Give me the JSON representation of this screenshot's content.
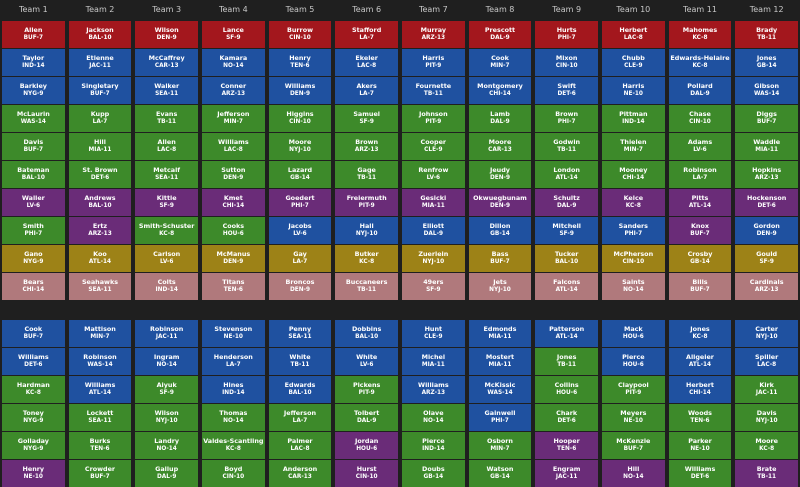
{
  "colors": {
    "QB": "#a3171d",
    "RB": "#1f51a0",
    "WR": "#3d8a2a",
    "TE": "#6a2c78",
    "K": "#9d8217",
    "DEF": "#b0797c",
    "background": "#1f1f1f",
    "header_text": "#c8c8c8"
  },
  "teams": [
    "Team 1",
    "Team 2",
    "Team 3",
    "Team 4",
    "Team 5",
    "Team 6",
    "Team 7",
    "Team 8",
    "Team 9",
    "Team 10",
    "Team 11",
    "Team 12"
  ],
  "rounds": [
    [
      {
        "name": "Allen",
        "team": "BUF-7",
        "pos": "QB"
      },
      {
        "name": "Jackson",
        "team": "BAL-10",
        "pos": "QB"
      },
      {
        "name": "Wilson",
        "team": "DEN-9",
        "pos": "QB"
      },
      {
        "name": "Lance",
        "team": "SF-9",
        "pos": "QB"
      },
      {
        "name": "Burrow",
        "team": "CIN-10",
        "pos": "QB"
      },
      {
        "name": "Stafford",
        "team": "LA-7",
        "pos": "QB"
      },
      {
        "name": "Murray",
        "team": "ARZ-13",
        "pos": "QB"
      },
      {
        "name": "Prescott",
        "team": "DAL-9",
        "pos": "QB"
      },
      {
        "name": "Hurts",
        "team": "PHI-7",
        "pos": "QB"
      },
      {
        "name": "Herbert",
        "team": "LAC-8",
        "pos": "QB"
      },
      {
        "name": "Mahomes",
        "team": "KC-8",
        "pos": "QB"
      },
      {
        "name": "Brady",
        "team": "TB-11",
        "pos": "QB"
      }
    ],
    [
      {
        "name": "Taylor",
        "team": "IND-14",
        "pos": "RB"
      },
      {
        "name": "Etienne",
        "team": "JAC-11",
        "pos": "RB"
      },
      {
        "name": "McCaffrey",
        "team": "CAR-13",
        "pos": "RB"
      },
      {
        "name": "Kamara",
        "team": "NO-14",
        "pos": "RB"
      },
      {
        "name": "Henry",
        "team": "TEN-6",
        "pos": "RB"
      },
      {
        "name": "Ekeler",
        "team": "LAC-8",
        "pos": "RB"
      },
      {
        "name": "Harris",
        "team": "PIT-9",
        "pos": "RB"
      },
      {
        "name": "Cook",
        "team": "MIN-7",
        "pos": "RB"
      },
      {
        "name": "Mixon",
        "team": "CIN-10",
        "pos": "RB"
      },
      {
        "name": "Chubb",
        "team": "CLE-9",
        "pos": "RB"
      },
      {
        "name": "Edwards-Helaire",
        "team": "KC-8",
        "pos": "RB"
      },
      {
        "name": "Jones",
        "team": "GB-14",
        "pos": "RB"
      }
    ],
    [
      {
        "name": "Barkley",
        "team": "NYG-9",
        "pos": "RB"
      },
      {
        "name": "Singletary",
        "team": "BUF-7",
        "pos": "RB"
      },
      {
        "name": "Walker",
        "team": "SEA-11",
        "pos": "RB"
      },
      {
        "name": "Conner",
        "team": "ARZ-13",
        "pos": "RB"
      },
      {
        "name": "Williams",
        "team": "DEN-9",
        "pos": "RB"
      },
      {
        "name": "Akers",
        "team": "LA-7",
        "pos": "RB"
      },
      {
        "name": "Fournette",
        "team": "TB-11",
        "pos": "RB"
      },
      {
        "name": "Montgomery",
        "team": "CHI-14",
        "pos": "RB"
      },
      {
        "name": "Swift",
        "team": "DET-6",
        "pos": "RB"
      },
      {
        "name": "Harris",
        "team": "NE-10",
        "pos": "RB"
      },
      {
        "name": "Pollard",
        "team": "DAL-9",
        "pos": "RB"
      },
      {
        "name": "Gibson",
        "team": "WAS-14",
        "pos": "RB"
      }
    ],
    [
      {
        "name": "McLaurin",
        "team": "WAS-14",
        "pos": "WR"
      },
      {
        "name": "Kupp",
        "team": "LA-7",
        "pos": "WR"
      },
      {
        "name": "Evans",
        "team": "TB-11",
        "pos": "WR"
      },
      {
        "name": "Jefferson",
        "team": "MIN-7",
        "pos": "WR"
      },
      {
        "name": "Higgins",
        "team": "CIN-10",
        "pos": "WR"
      },
      {
        "name": "Samuel",
        "team": "SF-9",
        "pos": "WR"
      },
      {
        "name": "Johnson",
        "team": "PIT-9",
        "pos": "WR"
      },
      {
        "name": "Lamb",
        "team": "DAL-9",
        "pos": "WR"
      },
      {
        "name": "Brown",
        "team": "PHI-7",
        "pos": "WR"
      },
      {
        "name": "Pittman",
        "team": "IND-14",
        "pos": "WR"
      },
      {
        "name": "Chase",
        "team": "CIN-10",
        "pos": "WR"
      },
      {
        "name": "Diggs",
        "team": "BUF-7",
        "pos": "WR"
      }
    ],
    [
      {
        "name": "Davis",
        "team": "BUF-7",
        "pos": "WR"
      },
      {
        "name": "Hill",
        "team": "MIA-11",
        "pos": "WR"
      },
      {
        "name": "Allen",
        "team": "LAC-8",
        "pos": "WR"
      },
      {
        "name": "Williams",
        "team": "LAC-8",
        "pos": "WR"
      },
      {
        "name": "Moore",
        "team": "NYJ-10",
        "pos": "WR"
      },
      {
        "name": "Brown",
        "team": "ARZ-13",
        "pos": "WR"
      },
      {
        "name": "Cooper",
        "team": "CLE-9",
        "pos": "WR"
      },
      {
        "name": "Moore",
        "team": "CAR-13",
        "pos": "WR"
      },
      {
        "name": "Godwin",
        "team": "TB-11",
        "pos": "WR"
      },
      {
        "name": "Thielen",
        "team": "MIN-7",
        "pos": "WR"
      },
      {
        "name": "Adams",
        "team": "LV-6",
        "pos": "WR"
      },
      {
        "name": "Waddle",
        "team": "MIA-11",
        "pos": "WR"
      }
    ],
    [
      {
        "name": "Bateman",
        "team": "BAL-10",
        "pos": "WR"
      },
      {
        "name": "St. Brown",
        "team": "DET-6",
        "pos": "WR"
      },
      {
        "name": "Metcalf",
        "team": "SEA-11",
        "pos": "WR"
      },
      {
        "name": "Sutton",
        "team": "DEN-9",
        "pos": "WR"
      },
      {
        "name": "Lazard",
        "team": "GB-14",
        "pos": "WR"
      },
      {
        "name": "Gage",
        "team": "TB-11",
        "pos": "WR"
      },
      {
        "name": "Renfrow",
        "team": "LV-6",
        "pos": "WR"
      },
      {
        "name": "Jeudy",
        "team": "DEN-9",
        "pos": "WR"
      },
      {
        "name": "London",
        "team": "ATL-14",
        "pos": "WR"
      },
      {
        "name": "Mooney",
        "team": "CHI-14",
        "pos": "WR"
      },
      {
        "name": "Robinson",
        "team": "LA-7",
        "pos": "WR"
      },
      {
        "name": "Hopkins",
        "team": "ARZ-13",
        "pos": "WR"
      }
    ],
    [
      {
        "name": "Waller",
        "team": "LV-6",
        "pos": "TE"
      },
      {
        "name": "Andrews",
        "team": "BAL-10",
        "pos": "TE"
      },
      {
        "name": "Kittle",
        "team": "SF-9",
        "pos": "TE"
      },
      {
        "name": "Kmet",
        "team": "CHI-14",
        "pos": "TE"
      },
      {
        "name": "Goedert",
        "team": "PHI-7",
        "pos": "TE"
      },
      {
        "name": "Freiermuth",
        "team": "PIT-9",
        "pos": "TE"
      },
      {
        "name": "Gesicki",
        "team": "MIA-11",
        "pos": "TE"
      },
      {
        "name": "Okwuegbunam",
        "team": "DEN-9",
        "pos": "TE"
      },
      {
        "name": "Schultz",
        "team": "DAL-9",
        "pos": "TE"
      },
      {
        "name": "Kelce",
        "team": "KC-8",
        "pos": "TE"
      },
      {
        "name": "Pitts",
        "team": "ATL-14",
        "pos": "TE"
      },
      {
        "name": "Hockenson",
        "team": "DET-6",
        "pos": "TE"
      }
    ],
    [
      {
        "name": "Smith",
        "team": "PHI-7",
        "pos": "WR"
      },
      {
        "name": "Ertz",
        "team": "ARZ-13",
        "pos": "TE"
      },
      {
        "name": "Smith-Schuster",
        "team": "KC-8",
        "pos": "WR"
      },
      {
        "name": "Cooks",
        "team": "HOU-6",
        "pos": "WR"
      },
      {
        "name": "Jacobs",
        "team": "LV-6",
        "pos": "RB"
      },
      {
        "name": "Hall",
        "team": "NYJ-10",
        "pos": "RB"
      },
      {
        "name": "Elliott",
        "team": "DAL-9",
        "pos": "RB"
      },
      {
        "name": "Dillon",
        "team": "GB-14",
        "pos": "RB"
      },
      {
        "name": "Mitchell",
        "team": "SF-9",
        "pos": "RB"
      },
      {
        "name": "Sanders",
        "team": "PHI-7",
        "pos": "RB"
      },
      {
        "name": "Knox",
        "team": "BUF-7",
        "pos": "TE"
      },
      {
        "name": "Gordon",
        "team": "DEN-9",
        "pos": "RB"
      }
    ],
    [
      {
        "name": "Gano",
        "team": "NYG-9",
        "pos": "K"
      },
      {
        "name": "Koo",
        "team": "ATL-14",
        "pos": "K"
      },
      {
        "name": "Carlson",
        "team": "LV-6",
        "pos": "K"
      },
      {
        "name": "McManus",
        "team": "DEN-9",
        "pos": "K"
      },
      {
        "name": "Gay",
        "team": "LA-7",
        "pos": "K"
      },
      {
        "name": "Butker",
        "team": "KC-8",
        "pos": "K"
      },
      {
        "name": "Zuerlein",
        "team": "NYJ-10",
        "pos": "K"
      },
      {
        "name": "Bass",
        "team": "BUF-7",
        "pos": "K"
      },
      {
        "name": "Tucker",
        "team": "BAL-10",
        "pos": "K"
      },
      {
        "name": "McPherson",
        "team": "CIN-10",
        "pos": "K"
      },
      {
        "name": "Crosby",
        "team": "GB-14",
        "pos": "K"
      },
      {
        "name": "Gould",
        "team": "SF-9",
        "pos": "K"
      }
    ],
    [
      {
        "name": "Bears",
        "team": "CHI-14",
        "pos": "DEF"
      },
      {
        "name": "Seahawks",
        "team": "SEA-11",
        "pos": "DEF"
      },
      {
        "name": "Colts",
        "team": "IND-14",
        "pos": "DEF"
      },
      {
        "name": "Titans",
        "team": "TEN-6",
        "pos": "DEF"
      },
      {
        "name": "Broncos",
        "team": "DEN-9",
        "pos": "DEF"
      },
      {
        "name": "Buccaneers",
        "team": "TB-11",
        "pos": "DEF"
      },
      {
        "name": "49ers",
        "team": "SF-9",
        "pos": "DEF"
      },
      {
        "name": "Jets",
        "team": "NYJ-10",
        "pos": "DEF"
      },
      {
        "name": "Falcons",
        "team": "ATL-14",
        "pos": "DEF"
      },
      {
        "name": "Saints",
        "team": "NO-14",
        "pos": "DEF"
      },
      {
        "name": "Bills",
        "team": "BUF-7",
        "pos": "DEF"
      },
      {
        "name": "Cardinals",
        "team": "ARZ-13",
        "pos": "DEF"
      }
    ],
    [
      {
        "name": "Cook",
        "team": "BUF-7",
        "pos": "RB"
      },
      {
        "name": "Mattison",
        "team": "MIN-7",
        "pos": "RB"
      },
      {
        "name": "Robinson",
        "team": "JAC-11",
        "pos": "RB"
      },
      {
        "name": "Stevenson",
        "team": "NE-10",
        "pos": "RB"
      },
      {
        "name": "Penny",
        "team": "SEA-11",
        "pos": "RB"
      },
      {
        "name": "Dobbins",
        "team": "BAL-10",
        "pos": "RB"
      },
      {
        "name": "Hunt",
        "team": "CLE-9",
        "pos": "RB"
      },
      {
        "name": "Edmonds",
        "team": "MIA-11",
        "pos": "RB"
      },
      {
        "name": "Patterson",
        "team": "ATL-14",
        "pos": "RB"
      },
      {
        "name": "Mack",
        "team": "HOU-6",
        "pos": "RB"
      },
      {
        "name": "Jones",
        "team": "KC-8",
        "pos": "RB"
      },
      {
        "name": "Carter",
        "team": "NYJ-10",
        "pos": "RB"
      }
    ],
    [
      {
        "name": "Williams",
        "team": "DET-6",
        "pos": "RB"
      },
      {
        "name": "Robinson",
        "team": "WAS-14",
        "pos": "RB"
      },
      {
        "name": "Ingram",
        "team": "NO-14",
        "pos": "RB"
      },
      {
        "name": "Henderson",
        "team": "LA-7",
        "pos": "RB"
      },
      {
        "name": "White",
        "team": "TB-11",
        "pos": "RB"
      },
      {
        "name": "White",
        "team": "LV-6",
        "pos": "RB"
      },
      {
        "name": "Michel",
        "team": "MIA-11",
        "pos": "RB"
      },
      {
        "name": "Mostert",
        "team": "MIA-11",
        "pos": "RB"
      },
      {
        "name": "Jones",
        "team": "TB-11",
        "pos": "WR"
      },
      {
        "name": "Pierce",
        "team": "HOU-6",
        "pos": "RB"
      },
      {
        "name": "Allgeier",
        "team": "ATL-14",
        "pos": "RB"
      },
      {
        "name": "Spiller",
        "team": "LAC-8",
        "pos": "RB"
      }
    ],
    [
      {
        "name": "Hardman",
        "team": "KC-8",
        "pos": "WR"
      },
      {
        "name": "Williams",
        "team": "ATL-14",
        "pos": "RB"
      },
      {
        "name": "Aiyuk",
        "team": "SF-9",
        "pos": "WR"
      },
      {
        "name": "Hines",
        "team": "IND-14",
        "pos": "RB"
      },
      {
        "name": "Edwards",
        "team": "BAL-10",
        "pos": "RB"
      },
      {
        "name": "Pickens",
        "team": "PIT-9",
        "pos": "WR"
      },
      {
        "name": "Williams",
        "team": "ARZ-13",
        "pos": "RB"
      },
      {
        "name": "McKissic",
        "team": "WAS-14",
        "pos": "RB"
      },
      {
        "name": "Collins",
        "team": "HOU-6",
        "pos": "WR"
      },
      {
        "name": "Claypool",
        "team": "PIT-9",
        "pos": "WR"
      },
      {
        "name": "Herbert",
        "team": "CHI-14",
        "pos": "RB"
      },
      {
        "name": "Kirk",
        "team": "JAC-11",
        "pos": "WR"
      }
    ],
    [
      {
        "name": "Toney",
        "team": "NYG-9",
        "pos": "WR"
      },
      {
        "name": "Lockett",
        "team": "SEA-11",
        "pos": "WR"
      },
      {
        "name": "Wilson",
        "team": "NYJ-10",
        "pos": "WR"
      },
      {
        "name": "Thomas",
        "team": "NO-14",
        "pos": "WR"
      },
      {
        "name": "Jefferson",
        "team": "LA-7",
        "pos": "WR"
      },
      {
        "name": "Tolbert",
        "team": "DAL-9",
        "pos": "WR"
      },
      {
        "name": "Olave",
        "team": "NO-14",
        "pos": "WR"
      },
      {
        "name": "Gainwell",
        "team": "PHI-7",
        "pos": "RB"
      },
      {
        "name": "Chark",
        "team": "DET-6",
        "pos": "WR"
      },
      {
        "name": "Meyers",
        "team": "NE-10",
        "pos": "WR"
      },
      {
        "name": "Woods",
        "team": "TEN-6",
        "pos": "WR"
      },
      {
        "name": "Davis",
        "team": "NYJ-10",
        "pos": "WR"
      }
    ],
    [
      {
        "name": "Golladay",
        "team": "NYG-9",
        "pos": "WR"
      },
      {
        "name": "Burks",
        "team": "TEN-6",
        "pos": "WR"
      },
      {
        "name": "Landry",
        "team": "NO-14",
        "pos": "WR"
      },
      {
        "name": "Valdes-Scantling",
        "team": "KC-8",
        "pos": "WR"
      },
      {
        "name": "Palmer",
        "team": "LAC-8",
        "pos": "WR"
      },
      {
        "name": "Jordan",
        "team": "HOU-6",
        "pos": "TE"
      },
      {
        "name": "Pierce",
        "team": "IND-14",
        "pos": "WR"
      },
      {
        "name": "Osborn",
        "team": "MIN-7",
        "pos": "WR"
      },
      {
        "name": "Hooper",
        "team": "TEN-6",
        "pos": "TE"
      },
      {
        "name": "McKenzie",
        "team": "BUF-7",
        "pos": "WR"
      },
      {
        "name": "Parker",
        "team": "NE-10",
        "pos": "WR"
      },
      {
        "name": "Moore",
        "team": "KC-8",
        "pos": "WR"
      }
    ],
    [
      {
        "name": "Henry",
        "team": "NE-10",
        "pos": "TE"
      },
      {
        "name": "Crowder",
        "team": "BUF-7",
        "pos": "WR"
      },
      {
        "name": "Gallup",
        "team": "DAL-9",
        "pos": "WR"
      },
      {
        "name": "Boyd",
        "team": "CIN-10",
        "pos": "WR"
      },
      {
        "name": "Anderson",
        "team": "CAR-13",
        "pos": "WR"
      },
      {
        "name": "Hurst",
        "team": "CIN-10",
        "pos": "TE"
      },
      {
        "name": "Doubs",
        "team": "GB-14",
        "pos": "WR"
      },
      {
        "name": "Watson",
        "team": "GB-14",
        "pos": "WR"
      },
      {
        "name": "Engram",
        "team": "JAC-11",
        "pos": "TE"
      },
      {
        "name": "Hill",
        "team": "NO-14",
        "pos": "TE"
      },
      {
        "name": "Williams",
        "team": "DET-6",
        "pos": "WR"
      },
      {
        "name": "Brate",
        "team": "TB-11",
        "pos": "TE"
      }
    ]
  ]
}
